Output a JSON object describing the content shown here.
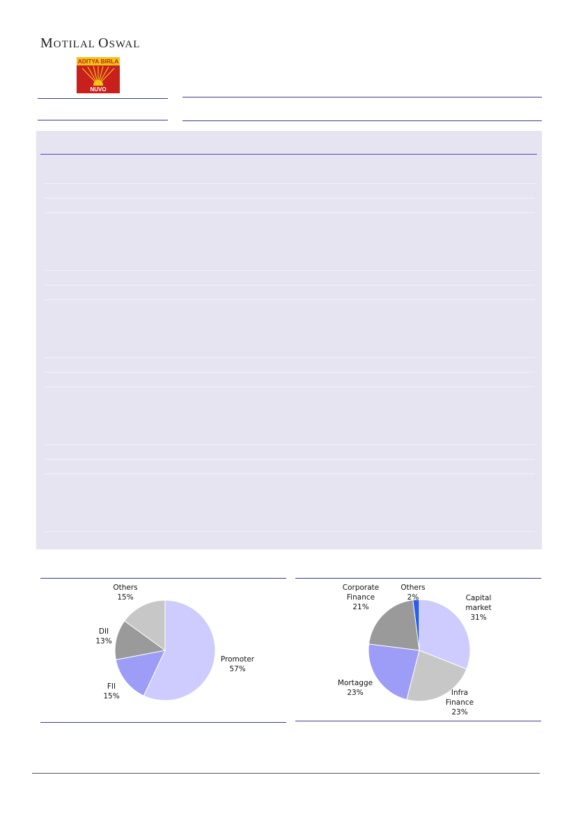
{
  "header": {
    "brand_first": "M",
    "brand_rest_1": "OTILAL ",
    "brand_second": "O",
    "brand_rest_2": "SWAL",
    "logo_top": "ADITYA BIRLA",
    "logo_bottom": "NUVO"
  },
  "chart_data": [
    {
      "type": "pie",
      "categories": [
        "Promoter",
        "FII",
        "DII",
        "Others"
      ],
      "values": [
        57,
        15,
        13,
        15
      ],
      "labels": [
        "57%",
        "15%",
        "13%",
        "15%"
      ],
      "colors": [
        "#cdcbff",
        "#9d9cf7",
        "#9a9a9a",
        "#c7c7c7"
      ]
    },
    {
      "type": "pie",
      "categories": [
        "Capital market",
        "Infra Finance",
        "Mortagge",
        "Corporate Finance",
        "Others"
      ],
      "values": [
        31,
        23,
        23,
        21,
        2
      ],
      "labels": [
        "31%",
        "23%",
        "23%",
        "21%",
        "2%"
      ],
      "colors": [
        "#cdcbff",
        "#c7c7c7",
        "#9d9cf7",
        "#9a9a9a",
        "#2a5cf0"
      ]
    }
  ]
}
